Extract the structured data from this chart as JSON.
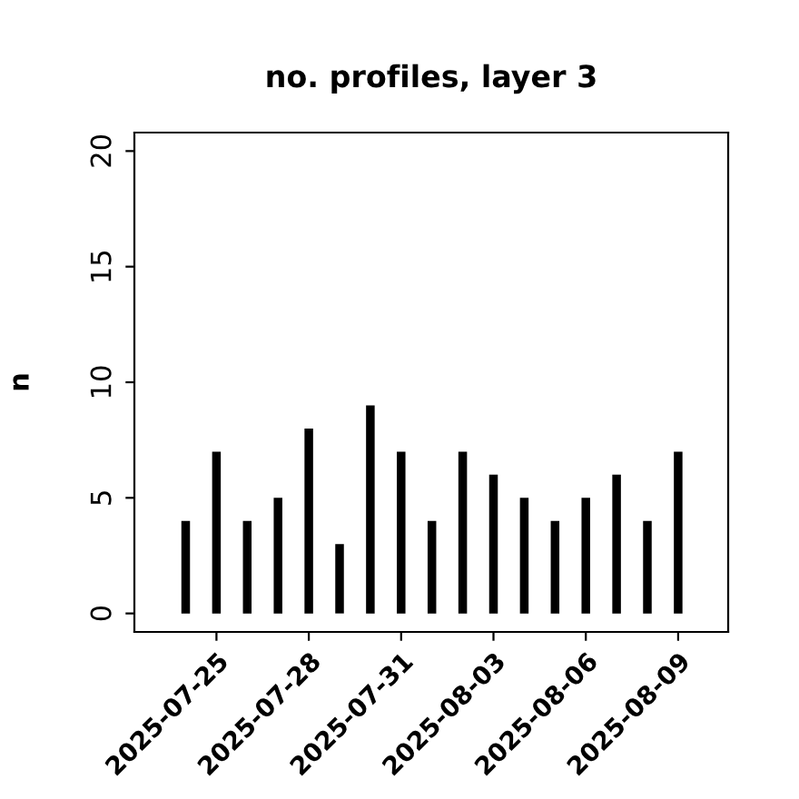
{
  "chart_data": {
    "type": "bar",
    "title": "no. profiles, layer 3",
    "ylabel": "n",
    "x": [
      "2025-07-24",
      "2025-07-25",
      "2025-07-26",
      "2025-07-27",
      "2025-07-28",
      "2025-07-29",
      "2025-07-30",
      "2025-07-31",
      "2025-08-01",
      "2025-08-02",
      "2025-08-03",
      "2025-08-04",
      "2025-08-05",
      "2025-08-06",
      "2025-08-07",
      "2025-08-08",
      "2025-08-09"
    ],
    "values": [
      4,
      7,
      4,
      5,
      8,
      3,
      9,
      7,
      4,
      7,
      6,
      5,
      4,
      5,
      6,
      4,
      7
    ],
    "color": "#000000",
    "xlim": [
      "2025-07-22T08:00",
      "2025-08-10T15:00"
    ],
    "xticks": [
      {
        "value": "2025-07-25",
        "label": "2025-07-25"
      },
      {
        "value": "2025-07-28",
        "label": "2025-07-28"
      },
      {
        "value": "2025-07-31",
        "label": "2025-07-31"
      },
      {
        "value": "2025-08-03",
        "label": "2025-08-03"
      },
      {
        "value": "2025-08-06",
        "label": "2025-08-06"
      },
      {
        "value": "2025-08-09",
        "label": "2025-08-09"
      }
    ],
    "ylim": [
      -0.8,
      20.8
    ],
    "yticks": [
      0,
      5,
      10,
      15,
      20
    ],
    "grid": false
  }
}
